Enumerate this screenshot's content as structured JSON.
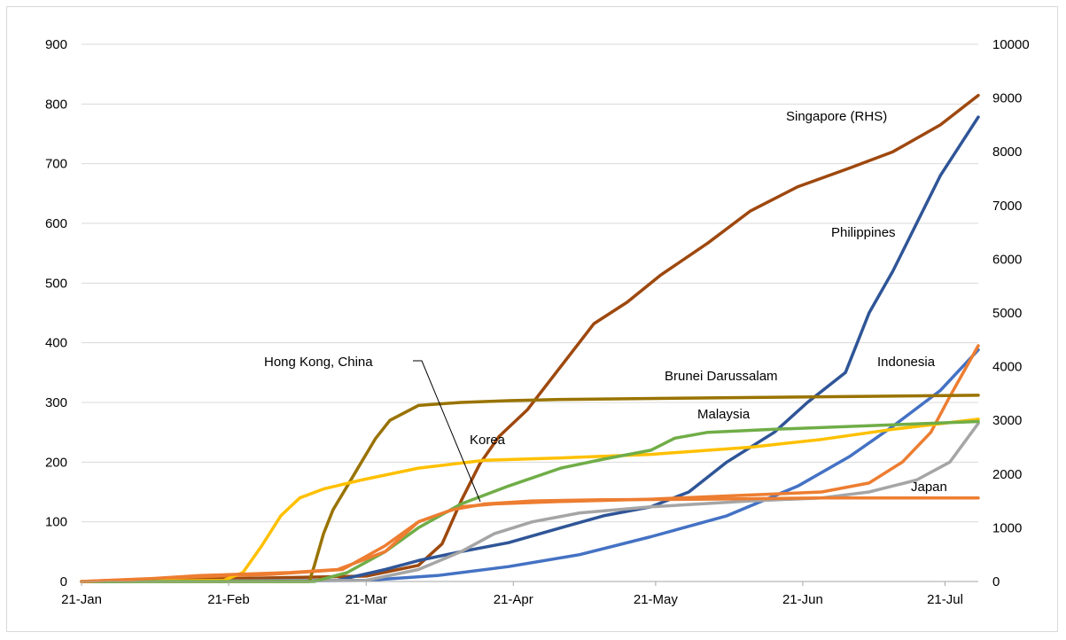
{
  "chart_data": {
    "type": "line",
    "title": "",
    "xlabel": "",
    "ylabel": "",
    "y_left_lim": [
      0,
      900
    ],
    "y_right_lim": [
      0,
      10000
    ],
    "y_left_ticks": [
      "0",
      "100",
      "200",
      "300",
      "400",
      "500",
      "600",
      "700",
      "800",
      "900"
    ],
    "y_right_ticks": [
      "0",
      "1000",
      "2000",
      "3000",
      "4000",
      "5000",
      "6000",
      "7000",
      "8000",
      "9000",
      "10000"
    ],
    "x_ticks": [
      {
        "label": "21-Jan",
        "date": "2020-01-21"
      },
      {
        "label": "21-Feb",
        "date": "2020-02-21"
      },
      {
        "label": "21-Mar",
        "date": "2020-03-21"
      },
      {
        "label": "21-Apr",
        "date": "2020-04-21"
      },
      {
        "label": "21-May",
        "date": "2020-05-21"
      },
      {
        "label": "21-Jun",
        "date": "2020-06-21"
      },
      {
        "label": "21-Jul",
        "date": "2020-07-21"
      }
    ],
    "grid": "horizontal",
    "legend": "inline labels",
    "series": [
      {
        "name": "Singapore (RHS)",
        "color": "#9e480e",
        "axis": "right",
        "points": [
          [
            "2020-01-21",
            0
          ],
          [
            "2020-03-21",
            100
          ],
          [
            "2020-04-01",
            300
          ],
          [
            "2020-04-06",
            700
          ],
          [
            "2020-04-10",
            1500
          ],
          [
            "2020-04-14",
            2200
          ],
          [
            "2020-04-18",
            2700
          ],
          [
            "2020-04-24",
            3200
          ],
          [
            "2020-05-01",
            4000
          ],
          [
            "2020-05-08",
            4800
          ],
          [
            "2020-05-15",
            5200
          ],
          [
            "2020-05-22",
            5700
          ],
          [
            "2020-06-01",
            6300
          ],
          [
            "2020-06-10",
            6900
          ],
          [
            "2020-06-20",
            7350
          ],
          [
            "2020-07-01",
            7700
          ],
          [
            "2020-07-10",
            8000
          ],
          [
            "2020-07-20",
            8500
          ],
          [
            "2020-07-28",
            9050
          ]
        ]
      },
      {
        "name": "Philippines",
        "color": "#2f5597",
        "axis": "left",
        "points": [
          [
            "2020-01-21",
            0
          ],
          [
            "2020-03-15",
            2
          ],
          [
            "2020-03-25",
            20
          ],
          [
            "2020-04-01",
            35
          ],
          [
            "2020-04-10",
            50
          ],
          [
            "2020-04-20",
            65
          ],
          [
            "2020-05-01",
            90
          ],
          [
            "2020-05-10",
            110
          ],
          [
            "2020-05-20",
            125
          ],
          [
            "2020-05-28",
            150
          ],
          [
            "2020-06-05",
            200
          ],
          [
            "2020-06-15",
            250
          ],
          [
            "2020-06-22",
            300
          ],
          [
            "2020-06-30",
            350
          ],
          [
            "2020-07-05",
            450
          ],
          [
            "2020-07-10",
            520
          ],
          [
            "2020-07-15",
            600
          ],
          [
            "2020-07-20",
            680
          ],
          [
            "2020-07-28",
            778
          ]
        ]
      },
      {
        "name": "Indonesia",
        "color": "#4472c4",
        "axis": "left",
        "points": [
          [
            "2020-01-21",
            0
          ],
          [
            "2020-03-21",
            2
          ],
          [
            "2020-04-05",
            10
          ],
          [
            "2020-04-20",
            25
          ],
          [
            "2020-05-05",
            45
          ],
          [
            "2020-05-20",
            75
          ],
          [
            "2020-06-05",
            110
          ],
          [
            "2020-06-20",
            160
          ],
          [
            "2020-07-01",
            210
          ],
          [
            "2020-07-10",
            260
          ],
          [
            "2020-07-20",
            320
          ],
          [
            "2020-07-28",
            388
          ]
        ]
      },
      {
        "name": "Japan (orange)",
        "color": "#ed7d31",
        "axis": "left",
        "points": [
          [
            "2020-01-21",
            0
          ],
          [
            "2020-02-15",
            8
          ],
          [
            "2020-03-01",
            12
          ],
          [
            "2020-03-16",
            20
          ],
          [
            "2020-03-25",
            60
          ],
          [
            "2020-04-01",
            100
          ],
          [
            "2020-04-10",
            125
          ],
          [
            "2020-04-17",
            130
          ],
          [
            "2020-05-01",
            134
          ],
          [
            "2020-05-20",
            138
          ],
          [
            "2020-06-10",
            145
          ],
          [
            "2020-06-25",
            150
          ],
          [
            "2020-07-05",
            165
          ],
          [
            "2020-07-12",
            200
          ],
          [
            "2020-07-18",
            250
          ],
          [
            "2020-07-22",
            310
          ],
          [
            "2020-07-28",
            395
          ]
        ]
      },
      {
        "name": "Japan",
        "color": "#a5a5a5",
        "axis": "left",
        "points": [
          [
            "2020-01-21",
            0
          ],
          [
            "2020-03-21",
            2
          ],
          [
            "2020-04-01",
            20
          ],
          [
            "2020-04-10",
            50
          ],
          [
            "2020-04-17",
            80
          ],
          [
            "2020-04-25",
            100
          ],
          [
            "2020-05-05",
            115
          ],
          [
            "2020-05-20",
            125
          ],
          [
            "2020-06-10",
            135
          ],
          [
            "2020-06-25",
            140
          ],
          [
            "2020-07-05",
            150
          ],
          [
            "2020-07-15",
            170
          ],
          [
            "2020-07-22",
            200
          ],
          [
            "2020-07-28",
            265
          ]
        ]
      },
      {
        "name": "Brunei Darussalam",
        "color": "#997300",
        "axis": "left",
        "points": [
          [
            "2020-01-21",
            0
          ],
          [
            "2020-03-09",
            0
          ],
          [
            "2020-03-10",
            25
          ],
          [
            "2020-03-12",
            80
          ],
          [
            "2020-03-14",
            120
          ],
          [
            "2020-03-17",
            160
          ],
          [
            "2020-03-20",
            200
          ],
          [
            "2020-03-23",
            240
          ],
          [
            "2020-03-26",
            270
          ],
          [
            "2020-04-01",
            295
          ],
          [
            "2020-04-10",
            300
          ],
          [
            "2020-04-20",
            303
          ],
          [
            "2020-05-01",
            305
          ],
          [
            "2020-07-28",
            312
          ]
        ]
      },
      {
        "name": "Korea",
        "color": "#ffc000",
        "axis": "left",
        "points": [
          [
            "2020-01-21",
            0
          ],
          [
            "2020-02-20",
            2
          ],
          [
            "2020-02-24",
            15
          ],
          [
            "2020-02-28",
            60
          ],
          [
            "2020-03-03",
            110
          ],
          [
            "2020-03-07",
            140
          ],
          [
            "2020-03-12",
            155
          ],
          [
            "2020-03-20",
            170
          ],
          [
            "2020-04-01",
            190
          ],
          [
            "2020-04-15",
            203
          ],
          [
            "2020-05-01",
            207
          ],
          [
            "2020-05-20",
            213
          ],
          [
            "2020-06-10",
            225
          ],
          [
            "2020-06-25",
            238
          ],
          [
            "2020-07-10",
            255
          ],
          [
            "2020-07-28",
            272
          ]
        ]
      },
      {
        "name": "Malaysia",
        "color": "#70ad47",
        "axis": "left",
        "points": [
          [
            "2020-01-21",
            0
          ],
          [
            "2020-03-10",
            0
          ],
          [
            "2020-03-17",
            15
          ],
          [
            "2020-03-25",
            50
          ],
          [
            "2020-04-01",
            90
          ],
          [
            "2020-04-10",
            130
          ],
          [
            "2020-04-20",
            160
          ],
          [
            "2020-05-01",
            190
          ],
          [
            "2020-05-10",
            205
          ],
          [
            "2020-05-20",
            220
          ],
          [
            "2020-05-25",
            240
          ],
          [
            "2020-06-01",
            250
          ],
          [
            "2020-06-15",
            255
          ],
          [
            "2020-07-28",
            268
          ]
        ]
      },
      {
        "name": "Hong Kong, China",
        "color": "#ed7d31",
        "axis": "left",
        "points": [
          [
            "2020-01-21",
            0
          ],
          [
            "2020-02-05",
            5
          ],
          [
            "2020-02-15",
            10
          ],
          [
            "2020-03-05",
            15
          ],
          [
            "2020-03-15",
            20
          ],
          [
            "2020-03-25",
            50
          ],
          [
            "2020-04-01",
            100
          ],
          [
            "2020-04-08",
            120
          ],
          [
            "2020-04-15",
            130
          ],
          [
            "2020-04-25",
            135
          ],
          [
            "2020-05-10",
            137
          ],
          [
            "2020-06-01",
            138
          ],
          [
            "2020-06-25",
            140
          ],
          [
            "2020-07-28",
            140
          ]
        ]
      }
    ],
    "labels": [
      {
        "text": "Singapore (RHS)"
      },
      {
        "text": "Philippines"
      },
      {
        "text": "Indonesia"
      },
      {
        "text": "Brunei Darussalam"
      },
      {
        "text": "Hong Kong, China"
      },
      {
        "text": "Malaysia"
      },
      {
        "text": "Korea"
      },
      {
        "text": "Japan"
      }
    ]
  }
}
